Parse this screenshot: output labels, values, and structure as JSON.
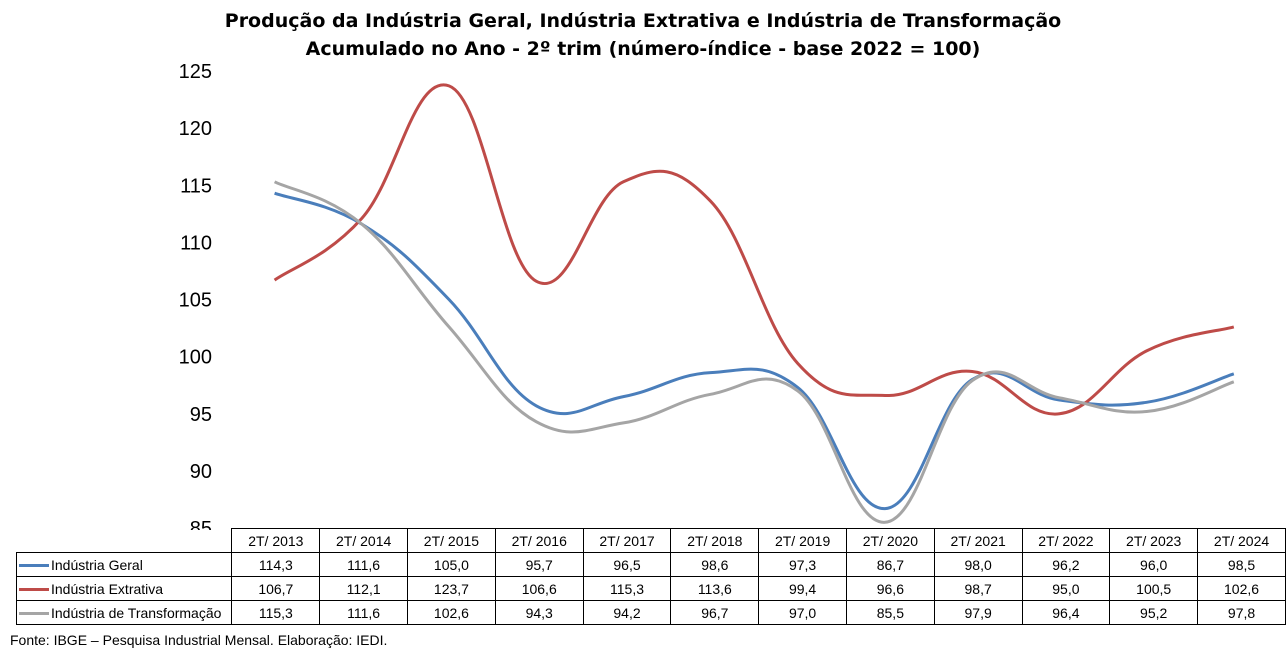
{
  "title_line1": "Produção da Indústria Geral, Indústria Extrativa e Indústria de Transformação",
  "title_line2": "Acumulado no Ano - 2º trim (número-índice - base 2022 = 100)",
  "source": "Fonte: IBGE – Pesquisa Industrial Mensal. Elaboração: IEDI.",
  "chart_data": {
    "type": "line",
    "title": "Produção da Indústria Geral, Indústria Extrativa e Indústria de Transformação Acumulado no Ano - 2º trim (número-índice - base 2022 = 100)",
    "categories": [
      "2T/ 2013",
      "2T/ 2014",
      "2T/ 2015",
      "2T/ 2016",
      "2T/ 2017",
      "2T/ 2018",
      "2T/ 2019",
      "2T/ 2020",
      "2T/ 2021",
      "2T/ 2022",
      "2T/ 2023",
      "2T/ 2024"
    ],
    "ylim": [
      85,
      125
    ],
    "yticks": [
      85,
      90,
      95,
      100,
      105,
      110,
      115,
      120,
      125
    ],
    "grid": false,
    "legend": "data-table",
    "series": [
      {
        "name": "Indústria Geral",
        "color": "#4a7ebb",
        "values": [
          114.3,
          111.6,
          105.0,
          95.7,
          96.5,
          98.6,
          97.3,
          86.7,
          98.0,
          96.2,
          96.0,
          98.5
        ],
        "labels": [
          "114,3",
          "111,6",
          "105,0",
          "95,7",
          "96,5",
          "98,6",
          "97,3",
          "86,7",
          "98,0",
          "96,2",
          "96,0",
          "98,5"
        ]
      },
      {
        "name": "Indústria Extrativa",
        "color": "#be4b48",
        "values": [
          106.7,
          112.1,
          123.7,
          106.6,
          115.3,
          113.6,
          99.4,
          96.6,
          98.7,
          95.0,
          100.5,
          102.6
        ],
        "labels": [
          "106,7",
          "112,1",
          "123,7",
          "106,6",
          "115,3",
          "113,6",
          "99,4",
          "96,6",
          "98,7",
          "95,0",
          "100,5",
          "102,6"
        ]
      },
      {
        "name": "Indústria de Transformação",
        "color": "#a5a5a5",
        "values": [
          115.3,
          111.6,
          102.6,
          94.3,
          94.2,
          96.7,
          97.0,
          85.5,
          97.9,
          96.4,
          95.2,
          97.8
        ],
        "labels": [
          "115,3",
          "111,6",
          "102,6",
          "94,3",
          "94,2",
          "96,7",
          "97,0",
          "85,5",
          "97,9",
          "96,4",
          "95,2",
          "97,8"
        ]
      }
    ]
  }
}
